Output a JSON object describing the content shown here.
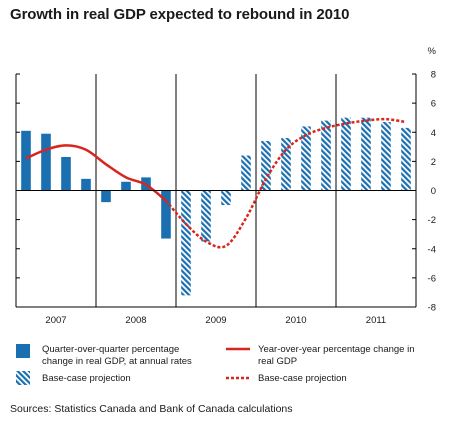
{
  "title": "Growth in real GDP expected to rebound in 2010",
  "source": "Sources: Statistics Canada and Bank of Canada calculations",
  "colors": {
    "bar": "#1a6fb0",
    "line": "#d7261e",
    "axis": "#000000"
  },
  "legend": {
    "bars_actual": "Quarter-over-quarter percentage change in real GDP, at annual rates",
    "bars_projection": "Base-case projection",
    "line_actual": "Year-over-year percentage change in real GDP",
    "line_projection": "Base-case projection"
  },
  "chart_data": {
    "type": "bar+line",
    "ylabel": "%",
    "ylim": [
      -8,
      8
    ],
    "yticks": [
      -8,
      -6,
      -4,
      -2,
      0,
      2,
      4,
      6,
      8
    ],
    "year_labels": [
      "2007",
      "2008",
      "2009",
      "2010",
      "2011"
    ],
    "quarters": [
      "2007Q1",
      "2007Q2",
      "2007Q3",
      "2007Q4",
      "2008Q1",
      "2008Q2",
      "2008Q3",
      "2008Q4",
      "2009Q1",
      "2009Q2",
      "2009Q3",
      "2009Q4",
      "2010Q1",
      "2010Q2",
      "2010Q3",
      "2010Q4",
      "2011Q1",
      "2011Q2",
      "2011Q3",
      "2011Q4"
    ],
    "series": [
      {
        "name": "Quarter-over-quarter percentage change in real GDP, at annual rates",
        "kind": "bar",
        "values": [
          4.1,
          3.9,
          2.3,
          0.8,
          -0.8,
          0.6,
          0.9,
          -3.3,
          -7.2,
          -3.5,
          -1.0,
          2.4,
          3.4,
          3.6,
          4.4,
          4.8,
          5.0,
          5.0,
          4.7,
          4.3
        ],
        "projection_from_index": 8
      },
      {
        "name": "Year-over-year percentage change in real GDP",
        "kind": "line",
        "values": [
          2.2,
          2.8,
          3.1,
          2.8,
          1.8,
          0.9,
          0.4,
          -0.7,
          -2.3,
          -3.5,
          -3.8,
          -1.9,
          0.8,
          2.8,
          3.8,
          4.3,
          4.6,
          4.8,
          4.9,
          4.7
        ],
        "projection_from_index": 8
      }
    ]
  }
}
